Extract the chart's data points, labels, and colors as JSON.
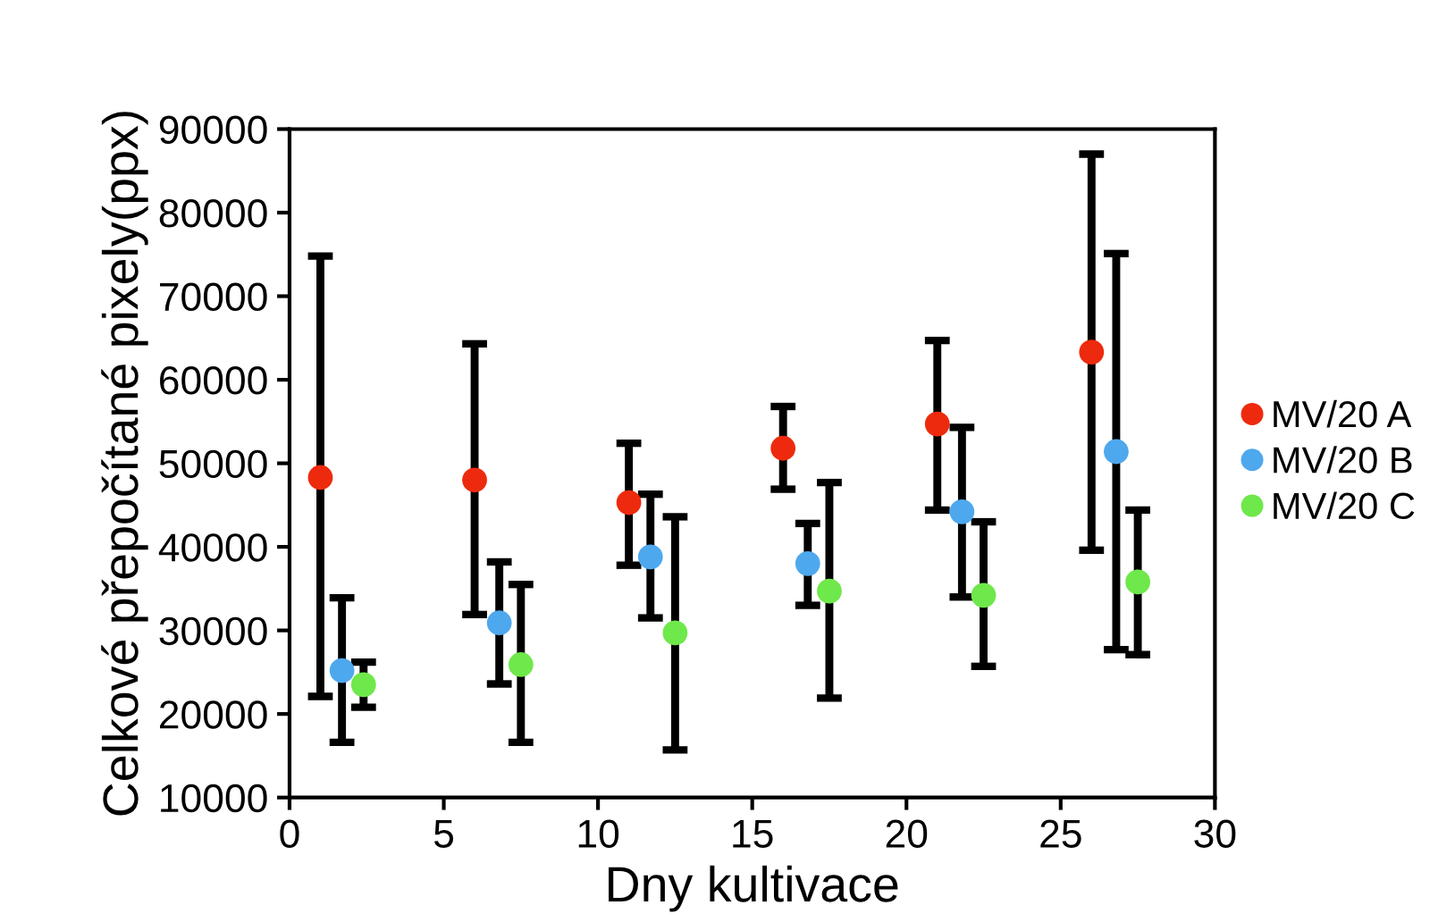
{
  "chart_data": {
    "type": "scatter",
    "xlabel": "Dny kultivace",
    "ylabel": "Celkové přepočítané pixely(ppx)",
    "xlim": [
      0,
      30
    ],
    "xticks": [
      0,
      5,
      10,
      15,
      20,
      25,
      30
    ],
    "ylim": [
      10000,
      90000
    ],
    "yticks": [
      10000,
      20000,
      30000,
      40000,
      50000,
      60000,
      70000,
      80000,
      90000
    ],
    "grid": false,
    "legend": "right",
    "marker": "circle",
    "series": [
      {
        "name": "MV/20 A",
        "color": "#ee2a0e",
        "x": [
          1,
          6,
          11,
          16,
          21,
          26
        ],
        "values": [
          48300,
          48000,
          45300,
          51800,
          54700,
          63300
        ],
        "errors": [
          [
            22100,
            74800
          ],
          [
            31900,
            64300
          ],
          [
            37800,
            52400
          ],
          [
            46900,
            56800
          ],
          [
            44400,
            64700
          ],
          [
            39600,
            87000
          ]
        ]
      },
      {
        "name": "MV/20 B",
        "color": "#4ea8ee",
        "x": [
          1.7,
          6.8,
          11.7,
          16.8,
          21.8,
          26.8
        ],
        "values": [
          25200,
          30900,
          38800,
          38000,
          44200,
          51400
        ],
        "errors": [
          [
            16600,
            33900
          ],
          [
            23600,
            38200
          ],
          [
            31500,
            46300
          ],
          [
            33000,
            42800
          ],
          [
            34000,
            54300
          ],
          [
            27700,
            75100
          ]
        ]
      },
      {
        "name": "MV/20 C",
        "color": "#6ee84a",
        "x": [
          2.4,
          7.5,
          12.5,
          17.5,
          22.5,
          27.5
        ],
        "values": [
          23500,
          25900,
          29700,
          34700,
          34200,
          35800
        ],
        "errors": [
          [
            20800,
            26200
          ],
          [
            16600,
            35500
          ],
          [
            15700,
            43600
          ],
          [
            21900,
            47700
          ],
          [
            25700,
            43000
          ],
          [
            27100,
            44400
          ]
        ]
      }
    ]
  }
}
